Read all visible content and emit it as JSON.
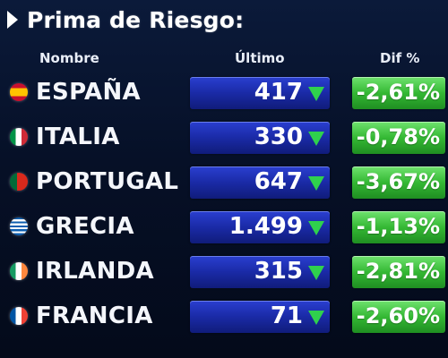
{
  "title": "Prima de Riesgo:",
  "headers": {
    "nombre": "Nombre",
    "ultimo": "Último",
    "dif": "Dif %"
  },
  "rows": [
    {
      "country": "ESPAÑA",
      "value": "417",
      "dif": "-2,61%",
      "flag": "spain-flag-icon"
    },
    {
      "country": "ITALIA",
      "value": "330",
      "dif": "-0,78%",
      "flag": "italy-flag-icon"
    },
    {
      "country": "PORTUGAL",
      "value": "647",
      "dif": "-3,67%",
      "flag": "portugal-flag-icon"
    },
    {
      "country": "GRECIA",
      "value": "1.499",
      "dif": "-1,13%",
      "flag": "greece-flag-icon"
    },
    {
      "country": "IRLANDA",
      "value": "315",
      "dif": "-2,81%",
      "flag": "ireland-flag-icon"
    },
    {
      "country": "FRANCIA",
      "value": "71",
      "dif": "-2,60%",
      "flag": "france-flag-icon"
    }
  ],
  "colors": {
    "background": "#061027",
    "value_box": "#1a2aa6",
    "dif_box": "#34b834",
    "down_arrow": "#2fd14d"
  }
}
